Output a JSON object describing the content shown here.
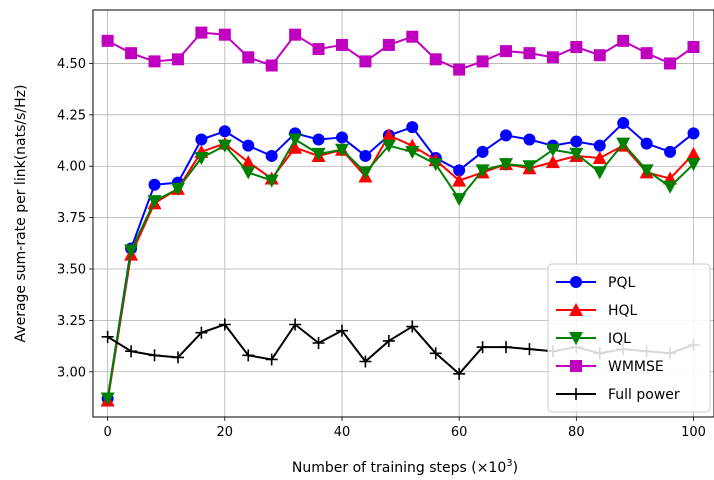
{
  "chart_data": {
    "type": "line",
    "xlabel": "Number of training steps (×10",
    "xlabel_sup": "3",
    "xlabel_end": ")",
    "ylabel": "Average sum-rate per link(nats/s/Hz)",
    "xlim": [
      -2.5,
      103.5
    ],
    "ylim": [
      2.78,
      4.76
    ],
    "xticks": [
      0,
      20,
      40,
      60,
      80,
      100
    ],
    "xtick_labels": [
      "0",
      "20",
      "40",
      "60",
      "80",
      "100"
    ],
    "yticks": [
      3.0,
      3.25,
      3.5,
      3.75,
      4.0,
      4.25,
      4.5
    ],
    "ytick_labels": [
      "3.00",
      "3.25",
      "3.50",
      "3.75",
      "4.00",
      "4.25",
      "4.50"
    ],
    "grid": true,
    "legend_position": "lower-right",
    "x": [
      0,
      4,
      8,
      12,
      16,
      20,
      24,
      28,
      32,
      36,
      40,
      44,
      48,
      52,
      56,
      60,
      64,
      68,
      72,
      76,
      80,
      84,
      88,
      92,
      96,
      100
    ],
    "series": [
      {
        "name": "PQL",
        "color": "#0000ff",
        "marker": "circle",
        "values": [
          2.87,
          3.6,
          3.91,
          3.92,
          4.13,
          4.17,
          4.1,
          4.05,
          4.16,
          4.13,
          4.14,
          4.05,
          4.15,
          4.19,
          4.04,
          3.98,
          4.07,
          4.15,
          4.13,
          4.1,
          4.12,
          4.1,
          4.21,
          4.11,
          4.07,
          4.16
        ]
      },
      {
        "name": "HQL",
        "color": "#ff0000",
        "marker": "triangle-up",
        "values": [
          2.86,
          3.57,
          3.82,
          3.89,
          4.07,
          4.11,
          4.02,
          3.94,
          4.09,
          4.05,
          4.08,
          3.95,
          4.15,
          4.1,
          4.03,
          3.93,
          3.97,
          4.01,
          3.99,
          4.02,
          4.05,
          4.04,
          4.1,
          3.97,
          3.94,
          4.06
        ]
      },
      {
        "name": "IQL",
        "color": "#008000",
        "marker": "triangle-down",
        "values": [
          2.87,
          3.59,
          3.83,
          3.89,
          4.04,
          4.1,
          3.97,
          3.93,
          4.13,
          4.06,
          4.08,
          3.97,
          4.1,
          4.07,
          4.01,
          3.84,
          3.98,
          4.01,
          4.0,
          4.08,
          4.06,
          3.97,
          4.11,
          3.98,
          3.9,
          4.01
        ]
      },
      {
        "name": "WMMSE",
        "color": "#bf00bf",
        "marker": "square",
        "values": [
          4.61,
          4.55,
          4.51,
          4.52,
          4.65,
          4.64,
          4.53,
          4.49,
          4.64,
          4.57,
          4.59,
          4.51,
          4.59,
          4.63,
          4.52,
          4.47,
          4.51,
          4.56,
          4.55,
          4.53,
          4.58,
          4.54,
          4.61,
          4.55,
          4.5,
          4.58
        ]
      },
      {
        "name": "Full power",
        "color": "#000000",
        "marker": "plus",
        "values": [
          3.17,
          3.1,
          3.08,
          3.07,
          3.19,
          3.23,
          3.08,
          3.06,
          3.23,
          3.14,
          3.2,
          3.05,
          3.15,
          3.22,
          3.09,
          2.99,
          3.12,
          3.12,
          3.11,
          3.1,
          3.12,
          3.09,
          3.11,
          3.1,
          3.09,
          3.13
        ]
      }
    ]
  }
}
